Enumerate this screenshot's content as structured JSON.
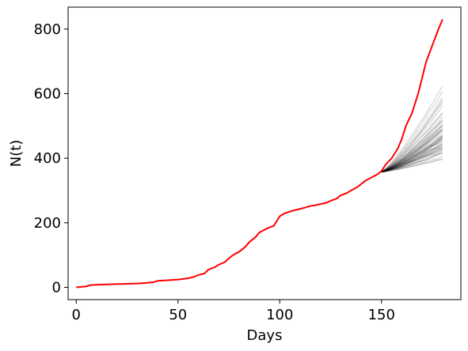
{
  "chart_data": {
    "type": "line",
    "title": "",
    "xlabel": "Days",
    "ylabel": "N(t)",
    "xlim": [
      -4,
      189
    ],
    "ylim": [
      -38,
      868
    ],
    "x_ticks": [
      0,
      50,
      100,
      150
    ],
    "x_tick_labels": [
      "0",
      "50",
      "100",
      "150"
    ],
    "y_ticks": [
      0,
      200,
      400,
      600,
      800
    ],
    "y_tick_labels": [
      "0",
      "200",
      "400",
      "600",
      "800"
    ],
    "grid": false,
    "legend": "none",
    "observed_series": {
      "color": "#ff0000",
      "x": [
        0,
        5,
        7,
        10,
        15,
        20,
        25,
        30,
        35,
        38,
        40,
        45,
        50,
        55,
        58,
        60,
        63,
        65,
        67,
        68,
        70,
        73,
        75,
        77,
        80,
        83,
        85,
        88,
        90,
        93,
        95,
        97,
        98,
        100,
        102,
        105,
        108,
        110,
        113,
        115,
        118,
        120,
        123,
        125,
        128,
        130,
        133,
        135,
        138,
        140,
        142,
        145,
        148,
        150,
        152,
        155,
        158,
        160,
        162,
        165,
        168,
        170,
        172,
        175,
        178,
        180
      ],
      "y": [
        0,
        3,
        7,
        8,
        9,
        10,
        11,
        12,
        14,
        16,
        20,
        22,
        24,
        28,
        33,
        38,
        43,
        55,
        60,
        62,
        70,
        78,
        90,
        100,
        110,
        125,
        140,
        155,
        170,
        180,
        186,
        190,
        200,
        220,
        228,
        235,
        240,
        243,
        248,
        252,
        255,
        258,
        262,
        268,
        275,
        285,
        292,
        300,
        310,
        320,
        330,
        340,
        350,
        360,
        380,
        400,
        430,
        460,
        500,
        540,
        600,
        650,
        700,
        750,
        800,
        830
      ]
    },
    "simulations": {
      "color": "#000000",
      "count": 50,
      "x_start": 150,
      "x_end": 180,
      "start_value": 358,
      "end_values": [
        390,
        400,
        405,
        410,
        415,
        420,
        422,
        425,
        428,
        430,
        432,
        435,
        438,
        440,
        442,
        445,
        448,
        450,
        452,
        455,
        458,
        460,
        462,
        465,
        468,
        470,
        472,
        475,
        478,
        480,
        483,
        485,
        488,
        490,
        495,
        500,
        505,
        510,
        515,
        520,
        525,
        530,
        538,
        545,
        555,
        565,
        575,
        590,
        610,
        630
      ]
    }
  }
}
